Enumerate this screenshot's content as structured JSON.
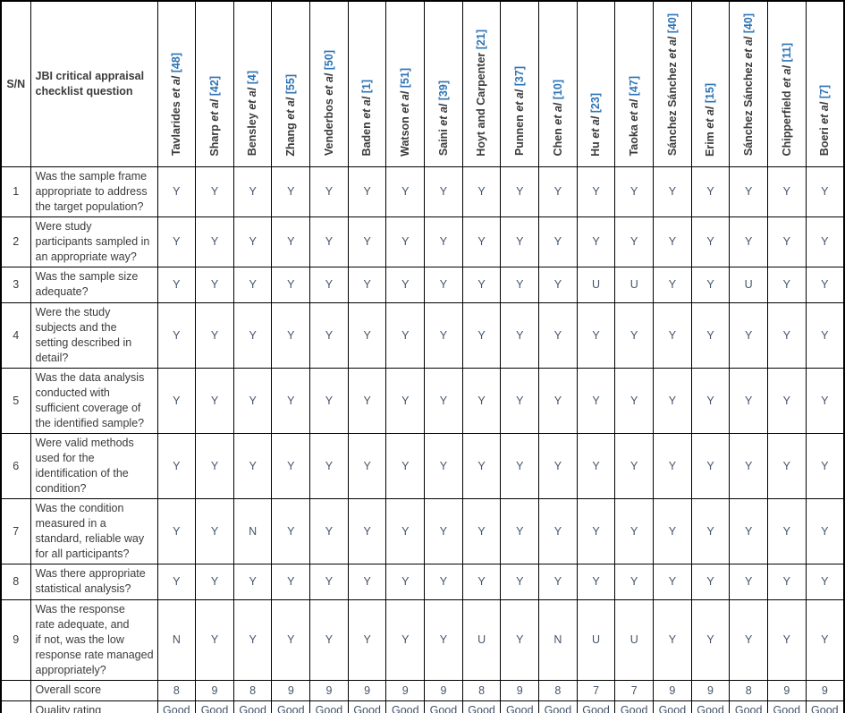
{
  "header": {
    "sn_label": "S/N",
    "question_label": "JBI critical appraisal\nchecklist question"
  },
  "studies": [
    {
      "name": "Tavlarides",
      "etal": " et al",
      "ref": " [48]"
    },
    {
      "name": "Sharp",
      "etal": " et al",
      "ref": " [42]"
    },
    {
      "name": "Bensley",
      "etal": " et al",
      "ref": " [4]"
    },
    {
      "name": "Zhang",
      "etal": " et al",
      "ref": " [55]"
    },
    {
      "name": "Venderbos",
      "etal": " et al",
      "ref": " [50]"
    },
    {
      "name": "Baden",
      "etal": " et al",
      "ref": " [1]"
    },
    {
      "name": "Watson",
      "etal": " et al",
      "ref": " [51]"
    },
    {
      "name": "Saini",
      "etal": " et al",
      "ref": " [39]"
    },
    {
      "name": "Hoyt and Carpenter",
      "etal": "",
      "ref": " [21]"
    },
    {
      "name": "Punnen",
      "etal": " et al",
      "ref": " [37]"
    },
    {
      "name": "Chen",
      "etal": " et al",
      "ref": " [10]"
    },
    {
      "name": "Hu",
      "etal": " et al",
      "ref": " [23]"
    },
    {
      "name": "Taoka",
      "etal": " et al",
      "ref": " [47]"
    },
    {
      "name": "Sánchez Sánchez",
      "etal": " et al",
      "ref": " [40]"
    },
    {
      "name": "Erim",
      "etal": " et al",
      "ref": " [15]"
    },
    {
      "name": "Sánchez Sánchez",
      "etal": " et al",
      "ref": " [40]"
    },
    {
      "name": "Chipperfield",
      "etal": " et al",
      "ref": " [11]"
    },
    {
      "name": "Boeri",
      "etal": " et al",
      "ref": " [7]"
    }
  ],
  "rows": [
    {
      "sn": "1",
      "question": "Was the sample frame\nappropriate to address\nthe target population?",
      "values": [
        "Y",
        "Y",
        "Y",
        "Y",
        "Y",
        "Y",
        "Y",
        "Y",
        "Y",
        "Y",
        "Y",
        "Y",
        "Y",
        "Y",
        "Y",
        "Y",
        "Y",
        "Y"
      ]
    },
    {
      "sn": "2",
      "question": "Were study\nparticipants sampled in\nan appropriate way?",
      "values": [
        "Y",
        "Y",
        "Y",
        "Y",
        "Y",
        "Y",
        "Y",
        "Y",
        "Y",
        "Y",
        "Y",
        "Y",
        "Y",
        "Y",
        "Y",
        "Y",
        "Y",
        "Y"
      ]
    },
    {
      "sn": "3",
      "question": "Was the sample size\nadequate?",
      "values": [
        "Y",
        "Y",
        "Y",
        "Y",
        "Y",
        "Y",
        "Y",
        "Y",
        "Y",
        "Y",
        "Y",
        "U",
        "U",
        "Y",
        "Y",
        "U",
        "Y",
        "Y"
      ]
    },
    {
      "sn": "4",
      "question": "Were the study\nsubjects and the\nsetting described in\ndetail?",
      "values": [
        "Y",
        "Y",
        "Y",
        "Y",
        "Y",
        "Y",
        "Y",
        "Y",
        "Y",
        "Y",
        "Y",
        "Y",
        "Y",
        "Y",
        "Y",
        "Y",
        "Y",
        "Y"
      ]
    },
    {
      "sn": "5",
      "question": "Was the data analysis\nconducted with\nsufficient coverage of\nthe identified sample?",
      "values": [
        "Y",
        "Y",
        "Y",
        "Y",
        "Y",
        "Y",
        "Y",
        "Y",
        "Y",
        "Y",
        "Y",
        "Y",
        "Y",
        "Y",
        "Y",
        "Y",
        "Y",
        "Y"
      ]
    },
    {
      "sn": "6",
      "question": "Were valid methods\nused for the\nidentification of the\ncondition?",
      "values": [
        "Y",
        "Y",
        "Y",
        "Y",
        "Y",
        "Y",
        "Y",
        "Y",
        "Y",
        "Y",
        "Y",
        "Y",
        "Y",
        "Y",
        "Y",
        "Y",
        "Y",
        "Y"
      ]
    },
    {
      "sn": "7",
      "question": "Was the condition\nmeasured in a\nstandard, reliable way\nfor all participants?",
      "values": [
        "Y",
        "Y",
        "N",
        "Y",
        "Y",
        "Y",
        "Y",
        "Y",
        "Y",
        "Y",
        "Y",
        "Y",
        "Y",
        "Y",
        "Y",
        "Y",
        "Y",
        "Y"
      ]
    },
    {
      "sn": "8",
      "question": "Was there appropriate\nstatistical analysis?",
      "values": [
        "Y",
        "Y",
        "Y",
        "Y",
        "Y",
        "Y",
        "Y",
        "Y",
        "Y",
        "Y",
        "Y",
        "Y",
        "Y",
        "Y",
        "Y",
        "Y",
        "Y",
        "Y"
      ]
    },
    {
      "sn": "9",
      "question": "Was the response\nrate adequate, and\nif not, was the low\nresponse rate managed\nappropriately?",
      "values": [
        "N",
        "Y",
        "Y",
        "Y",
        "Y",
        "Y",
        "Y",
        "Y",
        "U",
        "Y",
        "N",
        "U",
        "U",
        "Y",
        "Y",
        "Y",
        "Y",
        "Y"
      ]
    }
  ],
  "overall": {
    "label": "Overall score",
    "values": [
      "8",
      "9",
      "8",
      "9",
      "9",
      "9",
      "9",
      "9",
      "8",
      "9",
      "8",
      "7",
      "7",
      "9",
      "9",
      "8",
      "9",
      "9"
    ]
  },
  "quality": {
    "label": "Quality rating",
    "values": [
      "Good",
      "Good",
      "Good",
      "Good",
      "Good",
      "Good",
      "Good",
      "Good",
      "Good",
      "Good",
      "Good",
      "Good",
      "Good",
      "Good",
      "Good",
      "Good",
      "Good",
      "Good"
    ]
  },
  "colors": {
    "reference_blue": "#2e74b5",
    "body_text": "#3b3b3b",
    "answer_text": "#44546a",
    "border": "#000000"
  }
}
